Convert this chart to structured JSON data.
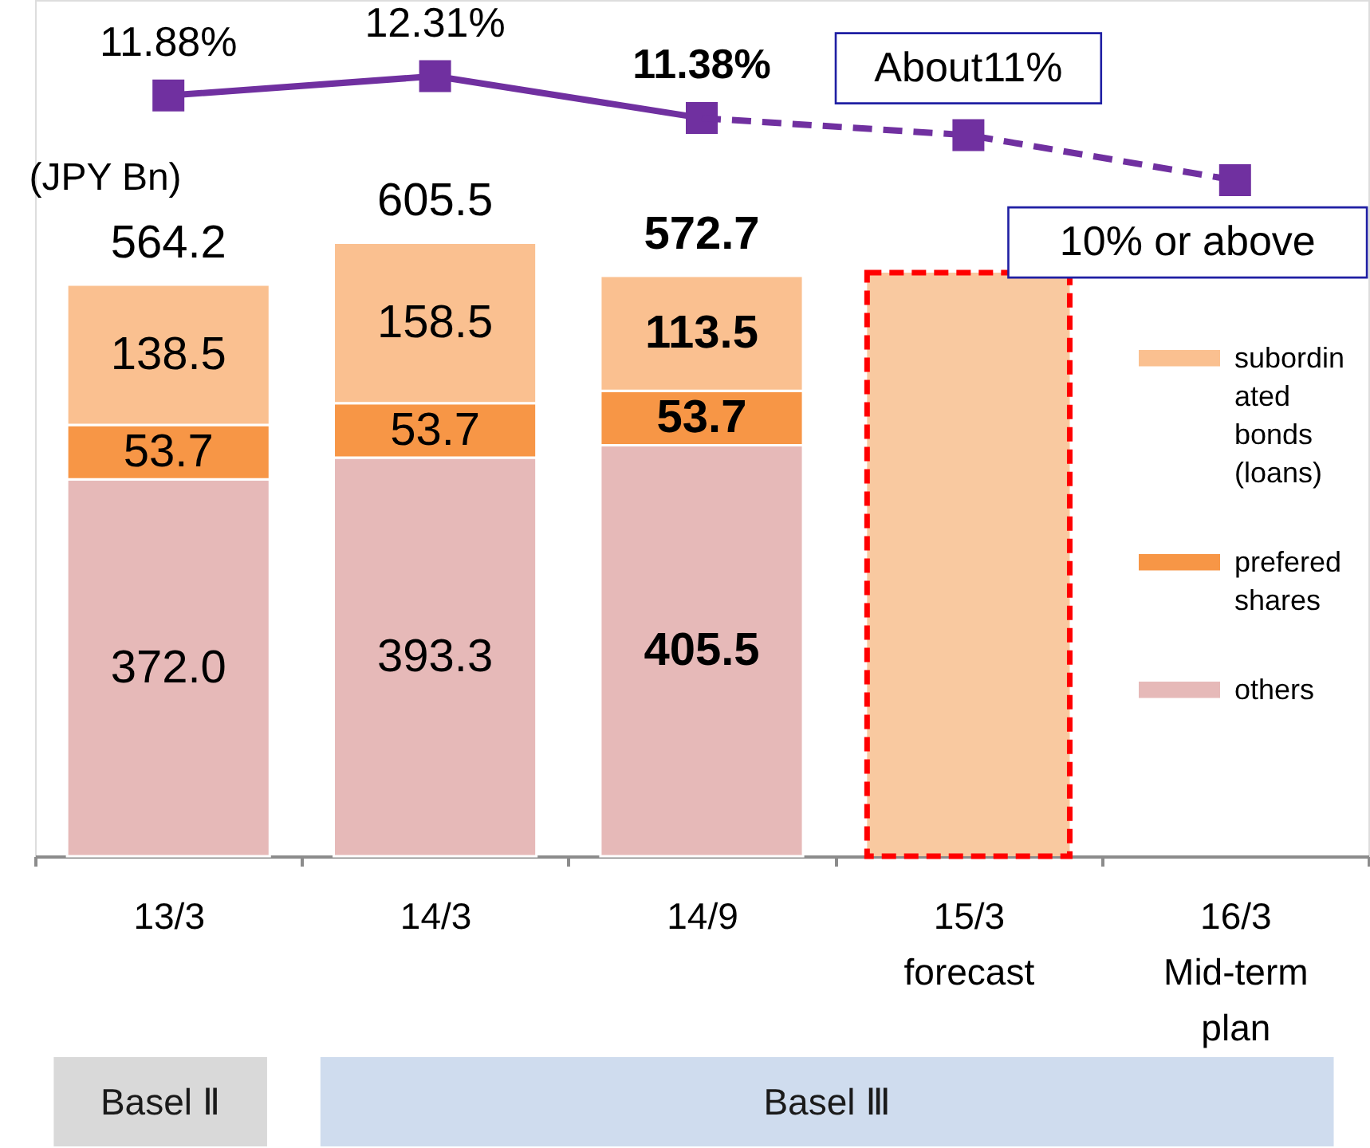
{
  "chart_data": {
    "type": "bar",
    "stacked": true,
    "categories": [
      "13/3",
      "14/3",
      "14/9",
      "15/3 forecast",
      "16/3 Mid-term plan"
    ],
    "ylabel": "(JPY Bn)",
    "ylim": [
      0,
      845
    ],
    "y2lim": [
      -5,
      14
    ],
    "tick_labels": "x",
    "legend": "right",
    "series": [
      {
        "name": "others",
        "color": "#e6b9b8",
        "values": [
          372.0,
          393.3,
          405.5,
          null,
          null
        ],
        "value_labels": [
          "372.0",
          "393.3",
          "405.5",
          null,
          null
        ]
      },
      {
        "name": "prefered shares",
        "color": "#f79646",
        "values": [
          53.7,
          53.7,
          53.7,
          null,
          null
        ],
        "value_labels": [
          "53.7",
          "53.7",
          "53.7",
          null,
          null
        ]
      },
      {
        "name": "subordinated bonds (loans)",
        "color": "#fac090",
        "values": [
          138.5,
          158.5,
          113.5,
          null,
          null
        ],
        "value_labels": [
          "138.5",
          "158.5",
          "113.5",
          null,
          null
        ]
      },
      {
        "color": "#f9c9a0",
        "values": [
          null,
          null,
          null,
          576,
          null
        ],
        "line_style": "dashed"
      },
      {
        "type": "line",
        "axis": "y2",
        "color": "#7030a0",
        "marker": "square",
        "line_style": "solid",
        "values": [
          11.88,
          12.31,
          11.38,
          null,
          null
        ],
        "value_labels": [
          "11.88%",
          "12.31%",
          "11.38%",
          null,
          null
        ]
      },
      {
        "type": "line",
        "axis": "y2",
        "color": "#7030a0",
        "marker": "square",
        "line_style": "dashed",
        "values": [
          null,
          null,
          11.38,
          11,
          10
        ],
        "value_labels": [
          null,
          null,
          null,
          "About11%",
          "10% or above"
        ]
      }
    ],
    "totals": [
      "564.2",
      "605.5",
      "572.7",
      null,
      null
    ],
    "annotations": [
      "Basel Ⅱ",
      "Basel Ⅲ"
    ]
  }
}
